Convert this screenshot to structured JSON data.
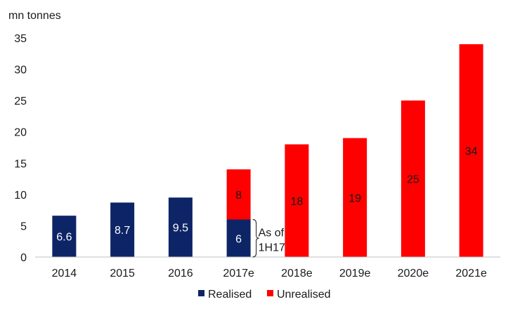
{
  "chart_data": {
    "type": "bar",
    "stacked": true,
    "title": "",
    "xlabel": "",
    "ylabel": "mn tonnes",
    "ylim": [
      0,
      35
    ],
    "yticks": [
      0,
      5,
      10,
      15,
      20,
      25,
      30,
      35
    ],
    "grid": false,
    "legend_position": "bottom",
    "categories": [
      "2014",
      "2015",
      "2016",
      "2017e",
      "2018e",
      "2019e",
      "2020e",
      "2021e"
    ],
    "series": [
      {
        "name": "Realised",
        "color": "#0d2466",
        "label_color": "#ffffff",
        "values": [
          6.6,
          8.7,
          9.5,
          6,
          0,
          0,
          0,
          0
        ],
        "labels": [
          "6.6",
          "8.7",
          "9.5",
          "6",
          "",
          "",
          "",
          ""
        ]
      },
      {
        "name": "Unrealised",
        "color": "#ff0000",
        "label_color": "#1a1a1a",
        "values": [
          0,
          0,
          0,
          8,
          18,
          19,
          25,
          34
        ],
        "labels": [
          "",
          "",
          "",
          "8",
          "18",
          "19",
          "25",
          "34"
        ]
      }
    ],
    "annotation": {
      "category": "2017e",
      "lines": [
        "As of",
        "1H17"
      ]
    }
  }
}
